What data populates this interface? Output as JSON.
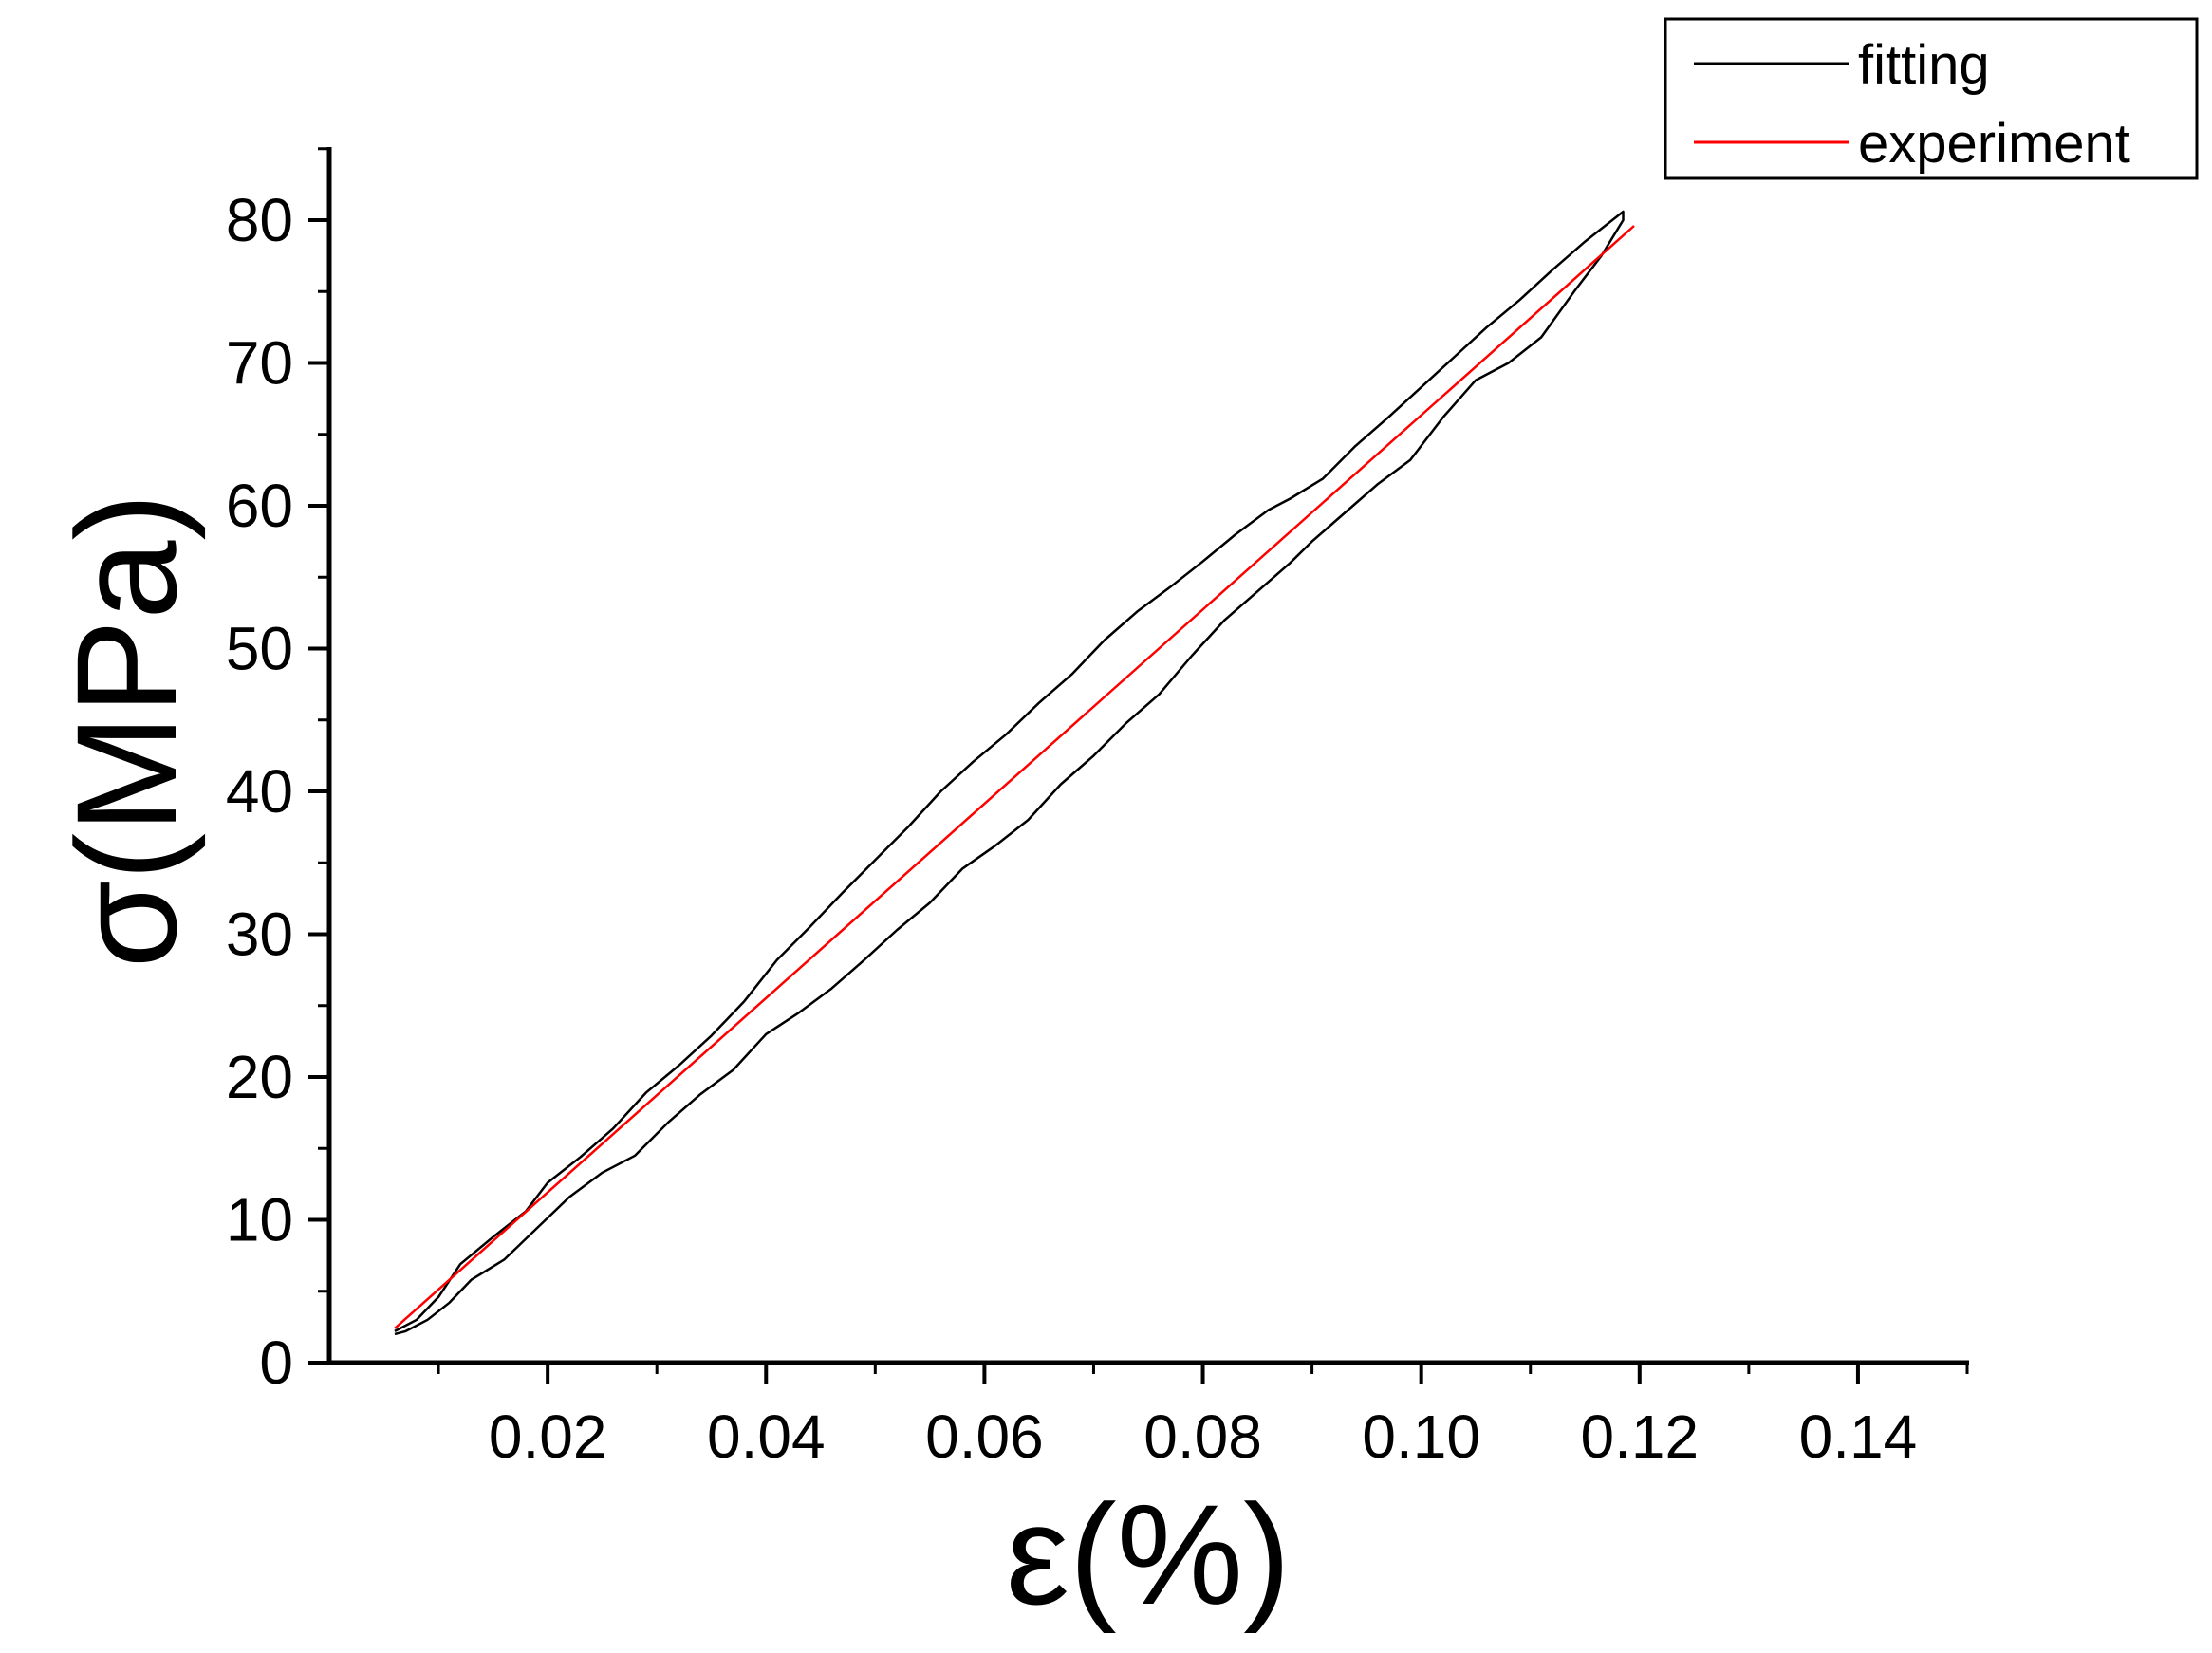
{
  "chart_data": {
    "type": "line",
    "title": "",
    "xlabel": "ε(%)",
    "ylabel": "σ(MPa)",
    "xlim": [
      0.0,
      0.15
    ],
    "ylim": [
      0,
      85
    ],
    "xticks": [
      0.02,
      0.04,
      0.06,
      0.08,
      0.1,
      0.12,
      0.14
    ],
    "xtick_labels": [
      "0.02",
      "0.04",
      "0.06",
      "0.08",
      "0.10",
      "0.12",
      "0.14"
    ],
    "yticks": [
      0,
      10,
      20,
      30,
      40,
      50,
      60,
      70,
      80
    ],
    "ytick_labels": [
      "0",
      "10",
      "20",
      "30",
      "40",
      "50",
      "60",
      "70",
      "80"
    ],
    "grid": false,
    "legend_position": "top-right",
    "series": [
      {
        "name": "fitting",
        "color": "#000000",
        "x": [
          0.006,
          0.008,
          0.01,
          0.012,
          0.015,
          0.018,
          0.02,
          0.023,
          0.026,
          0.029,
          0.032,
          0.035,
          0.038,
          0.041,
          0.044,
          0.047,
          0.05,
          0.053,
          0.056,
          0.059,
          0.062,
          0.065,
          0.068,
          0.071,
          0.074,
          0.077,
          0.08,
          0.083,
          0.086,
          0.088,
          0.091,
          0.094,
          0.097,
          0.1,
          0.103,
          0.106,
          0.109,
          0.112,
          0.115,
          0.1185,
          0.1185,
          0.1165,
          0.114,
          0.111,
          0.108,
          0.105,
          0.102,
          0.099,
          0.096,
          0.093,
          0.09,
          0.088,
          0.085,
          0.082,
          0.079,
          0.076,
          0.073,
          0.07,
          0.067,
          0.064,
          0.061,
          0.058,
          0.055,
          0.052,
          0.049,
          0.046,
          0.043,
          0.04,
          0.037,
          0.034,
          0.031,
          0.028,
          0.025,
          0.022,
          0.019,
          0.016,
          0.013,
          0.011,
          0.009,
          0.007,
          0.006
        ],
        "y": [
          2.2,
          3.0,
          4.6,
          6.9,
          8.8,
          10.6,
          12.6,
          14.4,
          16.4,
          18.9,
          20.8,
          22.9,
          25.3,
          28.2,
          30.5,
          32.9,
          35.2,
          37.5,
          40.0,
          42.1,
          44.0,
          46.2,
          48.2,
          50.6,
          52.6,
          54.3,
          56.1,
          58.0,
          59.7,
          60.5,
          61.9,
          64.2,
          66.2,
          68.3,
          70.4,
          72.5,
          74.4,
          76.5,
          78.5,
          80.6,
          80.0,
          77.5,
          75.0,
          71.8,
          70.0,
          68.8,
          66.2,
          63.2,
          61.5,
          59.5,
          57.5,
          56.0,
          54.0,
          52.0,
          49.5,
          46.8,
          44.8,
          42.5,
          40.5,
          38.0,
          36.2,
          34.6,
          32.2,
          30.3,
          28.2,
          26.2,
          24.5,
          23.0,
          20.5,
          18.8,
          16.8,
          14.5,
          13.3,
          11.6,
          9.4,
          7.2,
          5.8,
          4.2,
          3.0,
          2.2,
          2.0
        ]
      },
      {
        "name": "experiment",
        "color": "#ff0000",
        "x": [
          0.006,
          0.1195
        ],
        "y": [
          2.4,
          79.6
        ]
      }
    ]
  }
}
